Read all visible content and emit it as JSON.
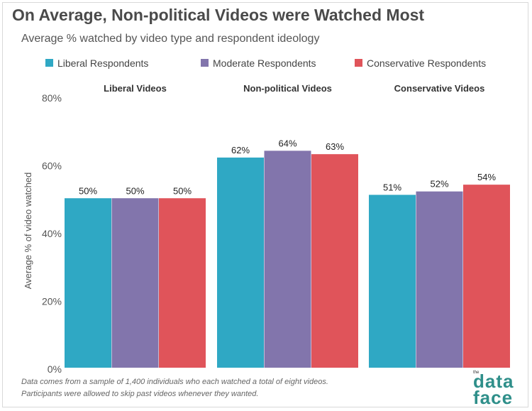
{
  "header": {
    "title": "On Average, Non-political Videos were Watched Most",
    "subtitle": "Average % watched by video type and respondent ideology"
  },
  "chart_data": {
    "type": "bar",
    "categories": [
      "Liberal Videos",
      "Non-political Videos",
      "Conservative Videos"
    ],
    "series": [
      {
        "name": "Liberal Respondents",
        "color": "#2fa8c4",
        "values": [
          50,
          62,
          51
        ],
        "labels": [
          "50%",
          "62%",
          "51%"
        ]
      },
      {
        "name": "Moderate Respondents",
        "color": "#8275ac",
        "values": [
          50,
          64,
          52
        ],
        "labels": [
          "50%",
          "64%",
          "52%"
        ]
      },
      {
        "name": "Conservative Respondents",
        "color": "#e0545a",
        "values": [
          50,
          63,
          54
        ],
        "labels": [
          "50%",
          "63%",
          "54%"
        ]
      }
    ],
    "ylabel": "Average % of video watched",
    "ylim": [
      0,
      80
    ],
    "yticks": [
      {
        "value": 0,
        "label": "0%"
      },
      {
        "value": 20,
        "label": "20%"
      },
      {
        "value": 40,
        "label": "40%"
      },
      {
        "value": 60,
        "label": "60%"
      },
      {
        "value": 80,
        "label": "80%"
      }
    ],
    "legend_position": "top",
    "grid": false
  },
  "footnote": {
    "line1": "Data comes from a sample of 1,400 individuals who each watched a total of eight videos.",
    "line2": "Participants were allowed to skip past videos whenever they wanted."
  },
  "logo": {
    "small": "the",
    "top": "data",
    "bottom": "face"
  }
}
